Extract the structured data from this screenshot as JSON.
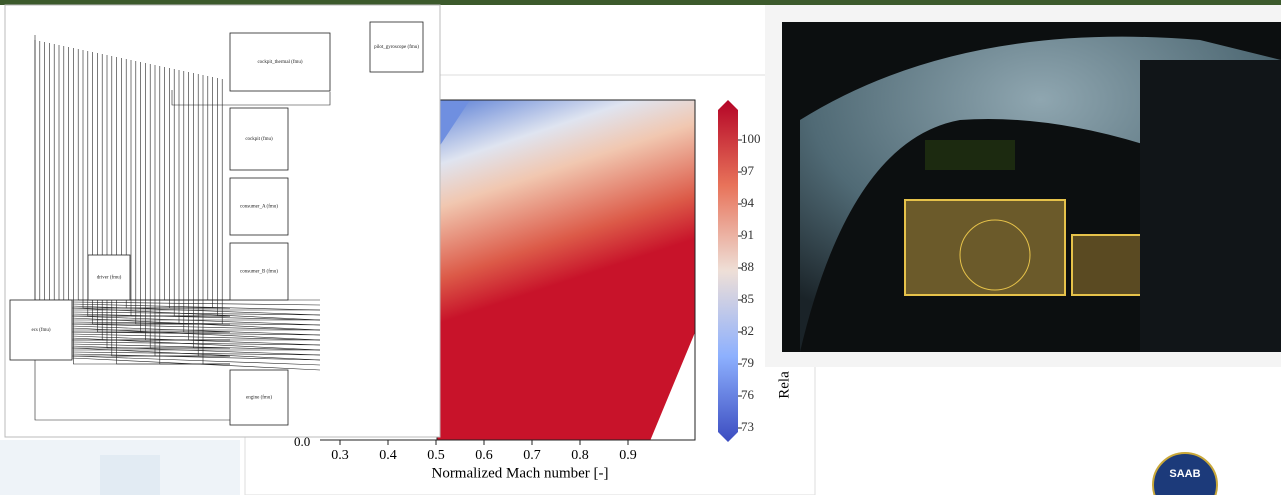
{
  "diagram": {
    "blocks": [
      "cockpit_thermal (fmu)",
      "pilot_gyroscope (fmu)",
      "cockpit (fmu)",
      "consumer_A (fmu)",
      "consumer_B (fmu)",
      "driver (fmu)",
      "ecs (fmu)",
      "engine (fmu)"
    ]
  },
  "plot": {
    "y_tick_visible": "0.0",
    "xticks": [
      "0.3",
      "0.4",
      "0.5",
      "0.6",
      "0.7",
      "0.8",
      "0.9"
    ],
    "xlabel": "Normalized Mach number [-]",
    "colorbar_ticks": [
      "100",
      "97",
      "94",
      "91",
      "88",
      "85",
      "82",
      "79",
      "76",
      "73"
    ],
    "colorbar_label": "Rela"
  },
  "logo": "SAAB"
}
